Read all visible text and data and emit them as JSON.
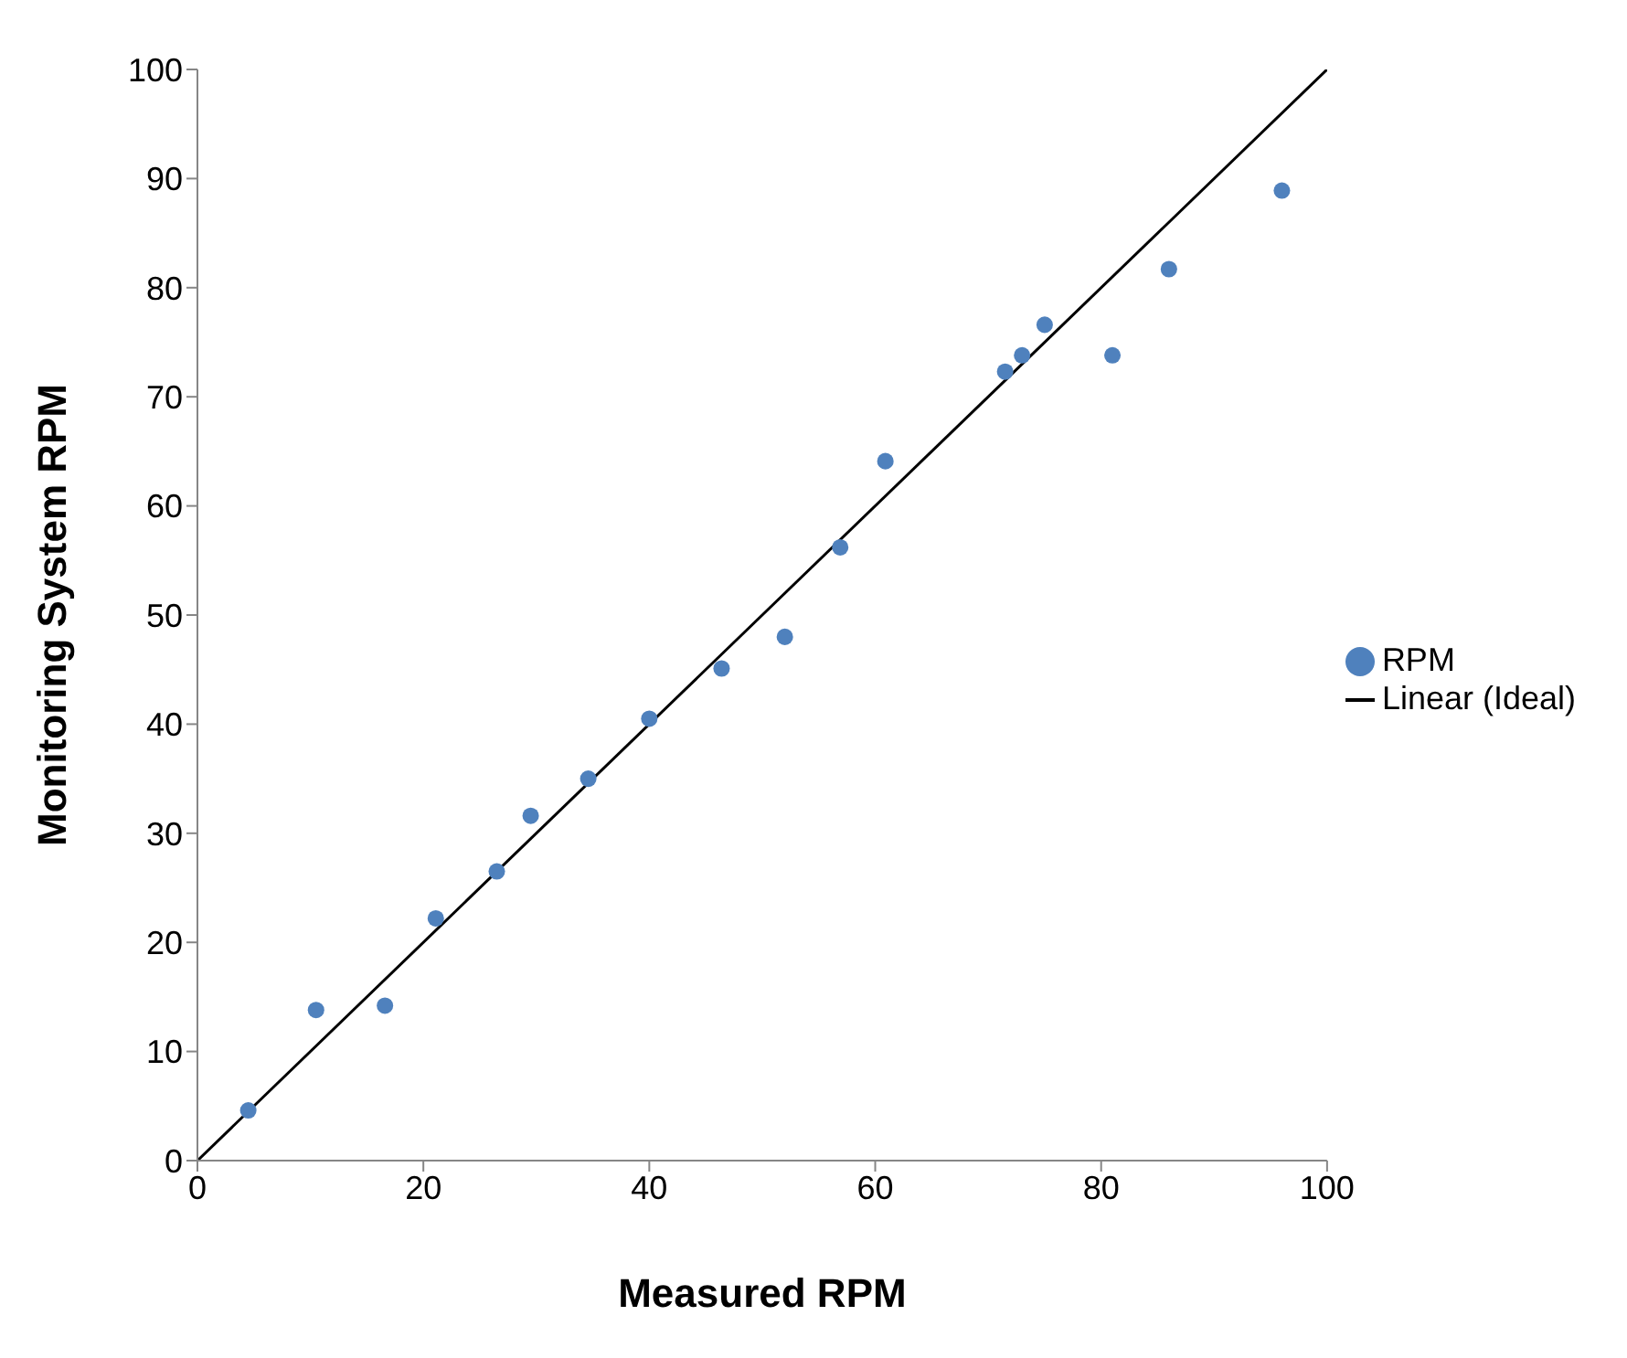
{
  "chart_data": {
    "type": "scatter",
    "xlabel": "Measured RPM",
    "ylabel": "Monitoring System RPM",
    "xlim": [
      0,
      100
    ],
    "xticks": [
      0,
      20,
      40,
      60,
      80,
      100
    ],
    "ylim": [
      0,
      100
    ],
    "yticks": [
      0,
      10,
      20,
      30,
      40,
      50,
      60,
      70,
      80,
      90,
      100
    ],
    "grid": false,
    "legend": "right",
    "series": [
      {
        "name": "RPM",
        "marker": "circle",
        "color": "#4f81bd",
        "x": [
          4.5,
          10.5,
          16.6,
          21.1,
          26.5,
          29.5,
          34.6,
          40.0,
          46.4,
          52.0,
          56.9,
          60.9,
          71.5,
          73.0,
          75.0,
          81.0,
          86.0,
          96.0
        ],
        "values": [
          4.6,
          13.8,
          14.2,
          22.2,
          26.5,
          31.6,
          35.0,
          40.5,
          45.1,
          48.0,
          56.2,
          64.1,
          72.3,
          73.8,
          76.6,
          73.8,
          81.7,
          88.9
        ]
      },
      {
        "name": "Linear (Ideal)",
        "type": "line",
        "marker": "none",
        "color": "#000000",
        "x": [
          0,
          100
        ],
        "values": [
          0,
          100
        ]
      }
    ]
  }
}
